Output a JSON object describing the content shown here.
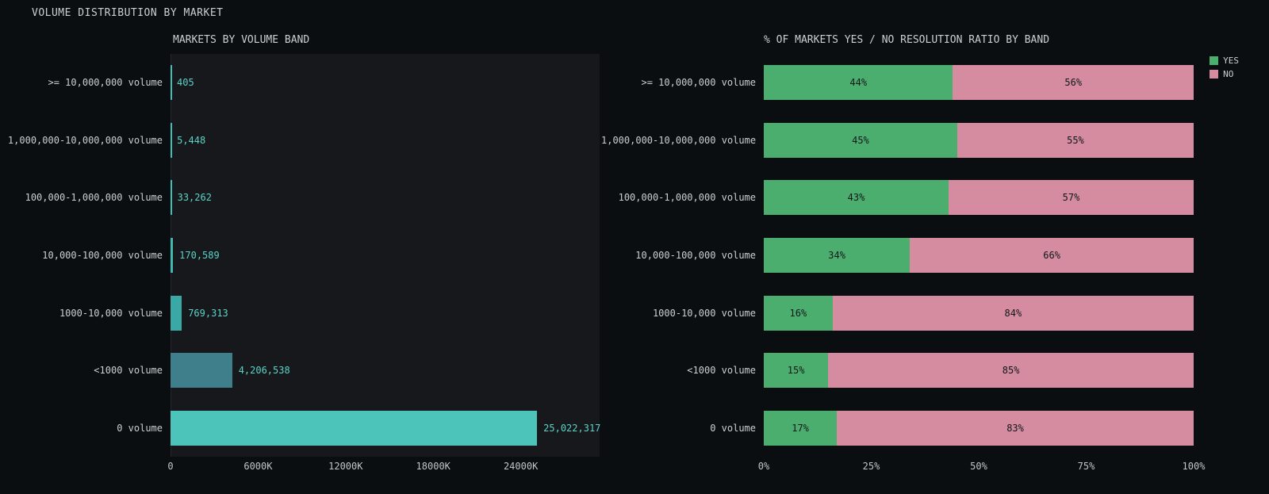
{
  "page": {
    "title": "VOLUME DISTRIBUTION BY MARKET",
    "background": "#0b0e11",
    "plot_background": "#16181c",
    "text_color": "#c9cfd4",
    "value_text_color": "#5bd3c7"
  },
  "chart_data": [
    {
      "type": "bar",
      "orientation": "horizontal",
      "title": "MARKETS BY VOLUME BAND",
      "categories": [
        ">= 10,000,000 volume",
        "1,000,000-10,000,000 volume",
        "100,000-1,000,000 volume",
        "10,000-100,000 volume",
        "1000-10,000 volume",
        "<1000 volume",
        "0 volume"
      ],
      "values": [
        405,
        5448,
        33262,
        170589,
        769313,
        4206538,
        25022317
      ],
      "value_labels": [
        "405",
        "5,448",
        "33,262",
        "170,589",
        "769,313",
        "4,206,538",
        "25,022,317"
      ],
      "bar_colors": [
        "#3fc0b5",
        "#3fc0b5",
        "#3fc0b5",
        "#3fbab1",
        "#3aa8a5",
        "#3f7f8b",
        "#4cc4ba"
      ],
      "xlabel": "",
      "ylabel": "",
      "xlim": [
        0,
        29400000
      ],
      "grid": false,
      "ticks": [
        {
          "value": 0,
          "label": "0"
        },
        {
          "value": 6000000,
          "label": "6000K"
        },
        {
          "value": 12000000,
          "label": "12000K"
        },
        {
          "value": 18000000,
          "label": "18000K"
        },
        {
          "value": 24000000,
          "label": "24000K"
        }
      ]
    },
    {
      "type": "bar",
      "subtype": "stacked-percent",
      "orientation": "horizontal",
      "title": "% OF MARKETS YES / NO RESOLUTION RATIO BY BAND",
      "categories": [
        ">= 10,000,000 volume",
        "1,000,000-10,000,000 volume",
        "100,000-1,000,000 volume",
        "10,000-100,000 volume",
        "1000-10,000 volume",
        "<1000 volume",
        "0 volume"
      ],
      "series": [
        {
          "name": "YES",
          "color": "#4cae6e",
          "values": [
            44,
            45,
            43,
            34,
            16,
            15,
            17
          ]
        },
        {
          "name": "NO",
          "color": "#d58ca0",
          "values": [
            56,
            55,
            57,
            66,
            84,
            85,
            83
          ]
        }
      ],
      "xlim": [
        0,
        100
      ],
      "legend_position": "top-right",
      "legend": [
        {
          "label": "YES",
          "color": "#4cae6e"
        },
        {
          "label": "NO",
          "color": "#d58ca0"
        }
      ],
      "ticks": [
        {
          "value": 0,
          "label": "0%"
        },
        {
          "value": 25,
          "label": "25%"
        },
        {
          "value": 50,
          "label": "50%"
        },
        {
          "value": 75,
          "label": "75%"
        },
        {
          "value": 100,
          "label": "100%"
        }
      ]
    }
  ]
}
